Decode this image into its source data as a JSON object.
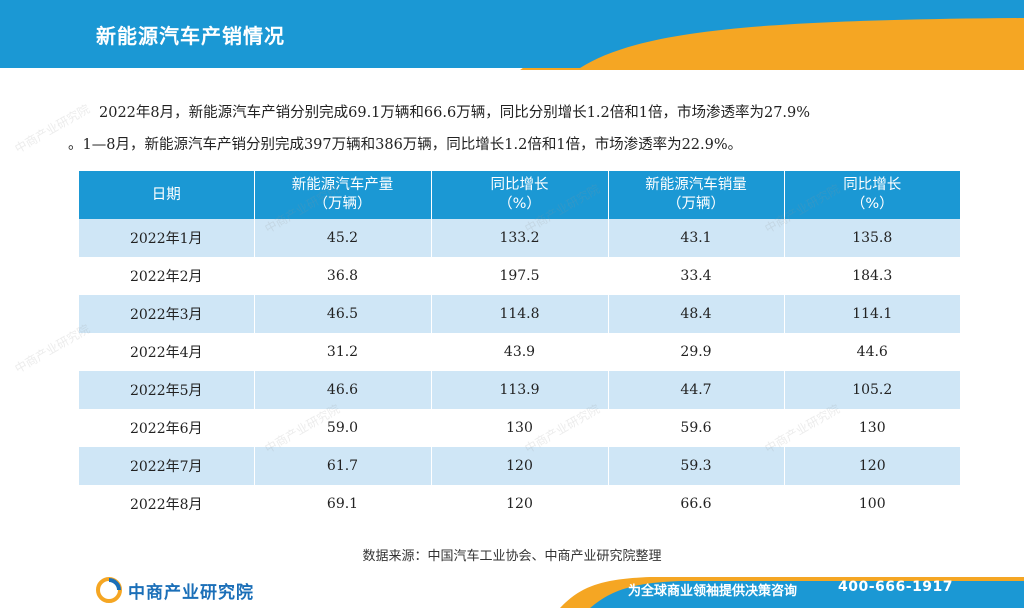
{
  "header": {
    "title": "新能源汽车产销情况",
    "colors": {
      "blue": "#1b98d4",
      "orange": "#f5a623"
    }
  },
  "paragraph": {
    "line1": "2022年8月，新能源汽车产销分别完成69.1万辆和66.6万辆，同比分别增长1.2倍和1倍，市场渗透率为27.9%",
    "line2": "。1—8月，新能源汽车产销分别完成397万辆和386万辆，同比增长1.2倍和1倍，市场渗透率为22.9%。"
  },
  "table": {
    "columns": [
      {
        "line1": "日期",
        "line2": ""
      },
      {
        "line1": "新能源汽车产量",
        "line2": "（万辆）"
      },
      {
        "line1": "同比增长",
        "line2": "（%）"
      },
      {
        "line1": "新能源汽车销量",
        "line2": "（万辆）"
      },
      {
        "line1": "同比增长",
        "line2": "（%）"
      }
    ],
    "rows": [
      [
        "2022年1月",
        "45.2",
        "133.2",
        "43.1",
        "135.8"
      ],
      [
        "2022年2月",
        "36.8",
        "197.5",
        "33.4",
        "184.3"
      ],
      [
        "2022年3月",
        "46.5",
        "114.8",
        "48.4",
        "114.1"
      ],
      [
        "2022年4月",
        "31.2",
        "43.9",
        "29.9",
        "44.6"
      ],
      [
        "2022年5月",
        "46.6",
        "113.9",
        "44.7",
        "105.2"
      ],
      [
        "2022年6月",
        "59.0",
        "130",
        "59.6",
        "130"
      ],
      [
        "2022年7月",
        "61.7",
        "120",
        "59.3",
        "120"
      ],
      [
        "2022年8月",
        "69.1",
        "120",
        "66.6",
        "100"
      ]
    ],
    "colors": {
      "header_bg": "#1b98d4",
      "shade_bg": "#cfe6f6"
    }
  },
  "source": "数据来源：中国汽车工业协会、中商产业研究院整理",
  "footer": {
    "logo_text": "中商产业研究院",
    "slogan": "为全球商业领袖提供决策咨询",
    "phone": "400-666-1917"
  },
  "watermark": {
    "text": "中商产业研究院"
  }
}
